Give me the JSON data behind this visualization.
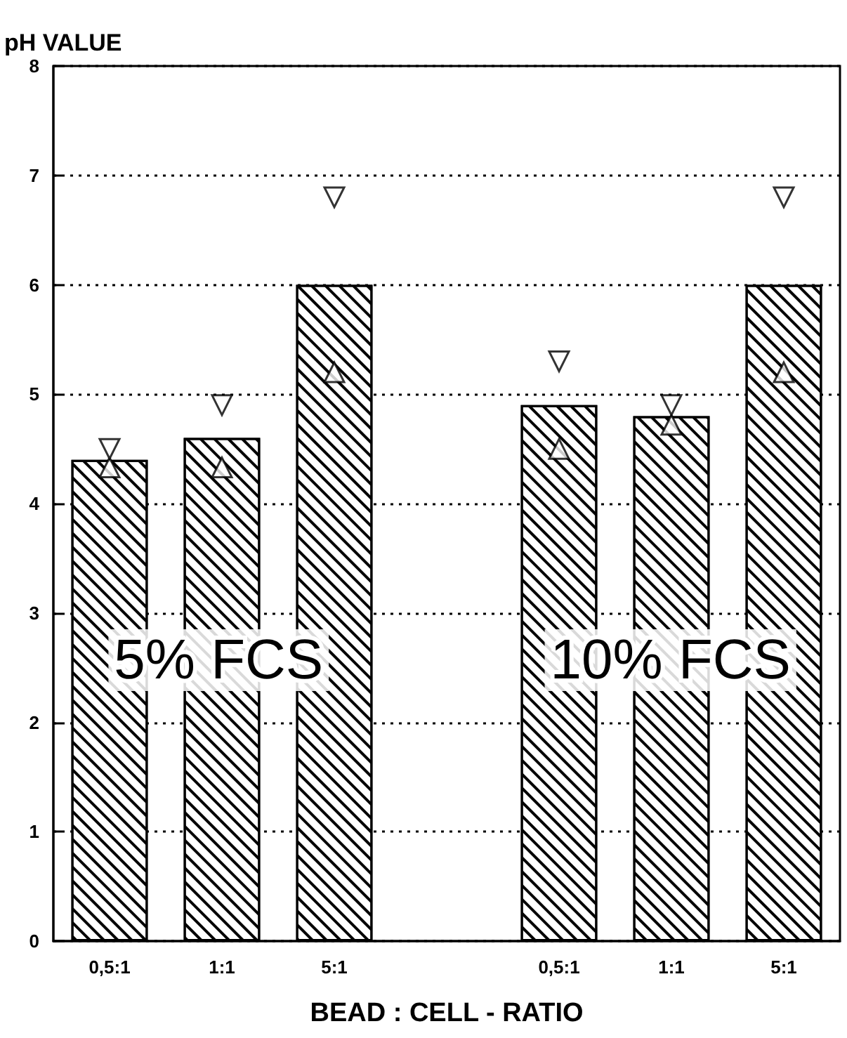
{
  "chart_data": {
    "type": "bar",
    "ylabel": "pH VALUE",
    "xlabel": "BEAD : CELL - RATIO",
    "categories": [
      "0,5:1",
      "1:1",
      "5:1",
      null,
      "0,5:1",
      "1:1",
      "5:1"
    ],
    "series": [
      {
        "color": "#000000",
        "values": [
          4.4,
          4.6,
          6.0,
          null,
          4.9,
          4.8,
          6.0
        ]
      },
      {
        "type": "scatter",
        "color": "#000000",
        "marker": "triangle",
        "values": [
          4.33,
          4.33,
          5.2,
          null,
          4.5,
          4.72,
          5.2
        ]
      },
      {
        "type": "scatter",
        "color": "#000000",
        "marker": "triangle",
        "values": [
          4.5,
          4.9,
          6.8,
          null,
          5.3,
          4.9,
          6.8
        ]
      }
    ],
    "ylim": [
      0,
      8
    ],
    "yticks": [
      0,
      1,
      2,
      3,
      4,
      5,
      6,
      7,
      8
    ],
    "grid": "y",
    "annotations": [
      "5% FCS",
      "10% FCS"
    ]
  }
}
